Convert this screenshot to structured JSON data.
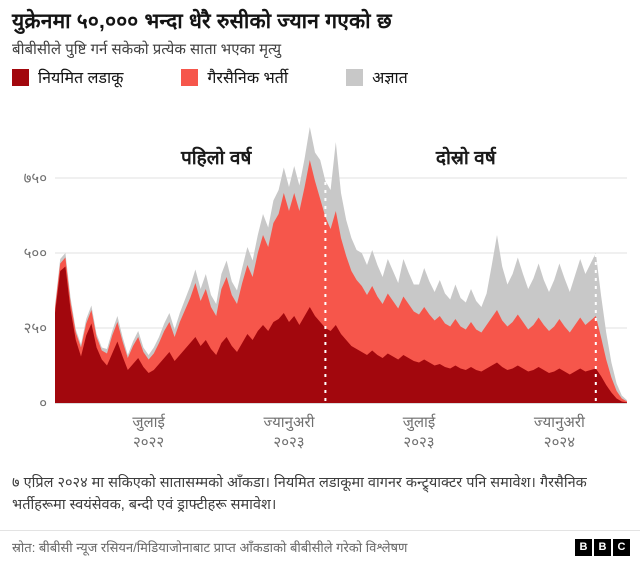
{
  "title": "युक्रेनमा ५०,००० भन्दा धेरै रुसीको ज्यान गएको छ",
  "subtitle": "बीबीसीले पुष्टि गर्न सकेको प्रत्येक साता भएका मृत्यु",
  "legend": [
    {
      "label": "नियमित लडाकू",
      "color": "#a2070d"
    },
    {
      "label": "गैरसैनिक भर्ती",
      "color": "#f6564b"
    },
    {
      "label": "अज्ञात",
      "color": "#c8c8c8"
    }
  ],
  "annotations": [
    {
      "label": "पहिलो वर्ष",
      "week": 31
    },
    {
      "label": "दोस्रो वर्ष",
      "week": 79
    }
  ],
  "chart_data": {
    "type": "area",
    "stacked": true,
    "n_points": 111,
    "x_unit": "week",
    "ylim": [
      0,
      1010
    ],
    "grid": true,
    "y_ticks": [
      {
        "value": 0,
        "label": "०"
      },
      {
        "value": 250,
        "label": "२५०"
      },
      {
        "value": 500,
        "label": "५००"
      },
      {
        "value": 750,
        "label": "७५०"
      }
    ],
    "x_ticks": [
      {
        "week": 18,
        "line1": "जुलाई",
        "line2": "२०२२"
      },
      {
        "week": 45,
        "line1": "ज्यानुअरी",
        "line2": "२०२३"
      },
      {
        "week": 70,
        "line1": "जुलाई",
        "line2": "२०२३"
      },
      {
        "week": 97,
        "line1": "ज्यानुअरी",
        "line2": "२०२४"
      }
    ],
    "dashed_lines": [
      52,
      104
    ],
    "series": [
      {
        "name": "नियमित लडाकू",
        "color": "#a2070d",
        "values": [
          300,
          440,
          455,
          310,
          210,
          155,
          225,
          265,
          185,
          145,
          125,
          165,
          205,
          155,
          110,
          130,
          150,
          120,
          100,
          110,
          130,
          150,
          170,
          140,
          160,
          180,
          200,
          220,
          190,
          210,
          180,
          160,
          200,
          220,
          190,
          170,
          200,
          230,
          210,
          240,
          260,
          240,
          270,
          280,
          300,
          270,
          290,
          260,
          290,
          320,
          290,
          270,
          250,
          240,
          260,
          230,
          210,
          190,
          180,
          170,
          160,
          175,
          160,
          150,
          165,
          155,
          145,
          160,
          150,
          140,
          135,
          145,
          135,
          125,
          130,
          120,
          115,
          125,
          115,
          110,
          120,
          110,
          105,
          115,
          125,
          135,
          120,
          110,
          115,
          125,
          115,
          105,
          110,
          120,
          110,
          100,
          105,
          115,
          105,
          95,
          105,
          115,
          105,
          110,
          115,
          90,
          60,
          35,
          15,
          5,
          2
        ]
      },
      {
        "name": "गैरसैनिक भर्ती",
        "color": "#f6564b",
        "values": [
          15,
          25,
          30,
          25,
          25,
          30,
          40,
          45,
          35,
          30,
          40,
          60,
          65,
          50,
          40,
          60,
          70,
          50,
          45,
          55,
          70,
          90,
          100,
          80,
          110,
          130,
          150,
          180,
          150,
          170,
          140,
          130,
          180,
          200,
          170,
          160,
          200,
          230,
          210,
          260,
          300,
          280,
          330,
          350,
          400,
          370,
          410,
          380,
          430,
          490,
          450,
          410,
          370,
          340,
          380,
          320,
          280,
          250,
          230,
          220,
          200,
          215,
          195,
          180,
          200,
          185,
          170,
          195,
          180,
          165,
          160,
          175,
          160,
          150,
          160,
          145,
          140,
          155,
          140,
          135,
          150,
          135,
          130,
          145,
          160,
          175,
          155,
          145,
          155,
          170,
          155,
          140,
          150,
          165,
          150,
          140,
          150,
          165,
          150,
          140,
          155,
          170,
          155,
          165,
          175,
          130,
          85,
          50,
          25,
          10,
          3
        ]
      },
      {
        "name": "अज्ञात",
        "color": "#c8c8c8",
        "values": [
          10,
          15,
          15,
          15,
          10,
          10,
          15,
          15,
          10,
          10,
          15,
          15,
          20,
          15,
          10,
          15,
          20,
          15,
          15,
          20,
          20,
          25,
          30,
          25,
          30,
          35,
          40,
          45,
          40,
          50,
          40,
          40,
          50,
          55,
          45,
          45,
          50,
          60,
          55,
          60,
          70,
          65,
          75,
          80,
          85,
          80,
          90,
          85,
          95,
          110,
          95,
          130,
          120,
          130,
          230,
          150,
          120,
          110,
          100,
          110,
          100,
          120,
          105,
          90,
          115,
          100,
          85,
          125,
          105,
          90,
          100,
          130,
          110,
          95,
          120,
          100,
          90,
          115,
          95,
          90,
          110,
          95,
          85,
          105,
          175,
          250,
          180,
          140,
          160,
          190,
          160,
          135,
          155,
          180,
          150,
          130,
          155,
          185,
          160,
          135,
          165,
          195,
          170,
          190,
          210,
          140,
          90,
          50,
          25,
          10,
          4
        ]
      }
    ]
  },
  "footnote": "७ एप्रिल २०२४ मा सकिएको सातासम्मको आँकडा। नियमित लडाकूमा वागनर कन्ट्र्याक्टर पनि समावेश। गैरसैनिक भर्तीहरूमा स्वयंसेवक, बन्दी एवं ड्राफ्टीहरू समावेश।",
  "source": {
    "label": "स्रोत: बीबीसी न्यूज रसियन/मिडियाजोनाबाट प्राप्त आँकडाको बीबीसीले गरेको विश्लेषण",
    "logo_letters": [
      "B",
      "B",
      "C"
    ]
  }
}
